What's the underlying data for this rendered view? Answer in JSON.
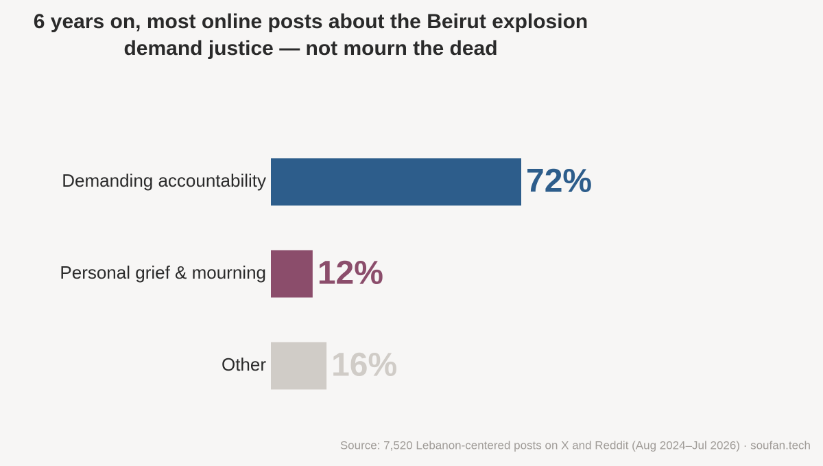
{
  "chart_data": {
    "type": "hbar",
    "title": [
      "6 years on, most online posts about the Beirut explosion",
      "demand justice — not mourn the dead"
    ],
    "categories": [
      "Demanding accountability",
      "Personal grief & mourning",
      "Other"
    ],
    "values": [
      72,
      12,
      16
    ],
    "value_labels": [
      "72%",
      "12%",
      "16%"
    ],
    "colors": [
      "#2d5d8b",
      "#8b4d6b",
      "#d0ccc7"
    ],
    "source": "Source: 7,520 Lebanon-centered posts on X and Reddit (Aug 2024–Jul 2026) · soufan.tech"
  }
}
